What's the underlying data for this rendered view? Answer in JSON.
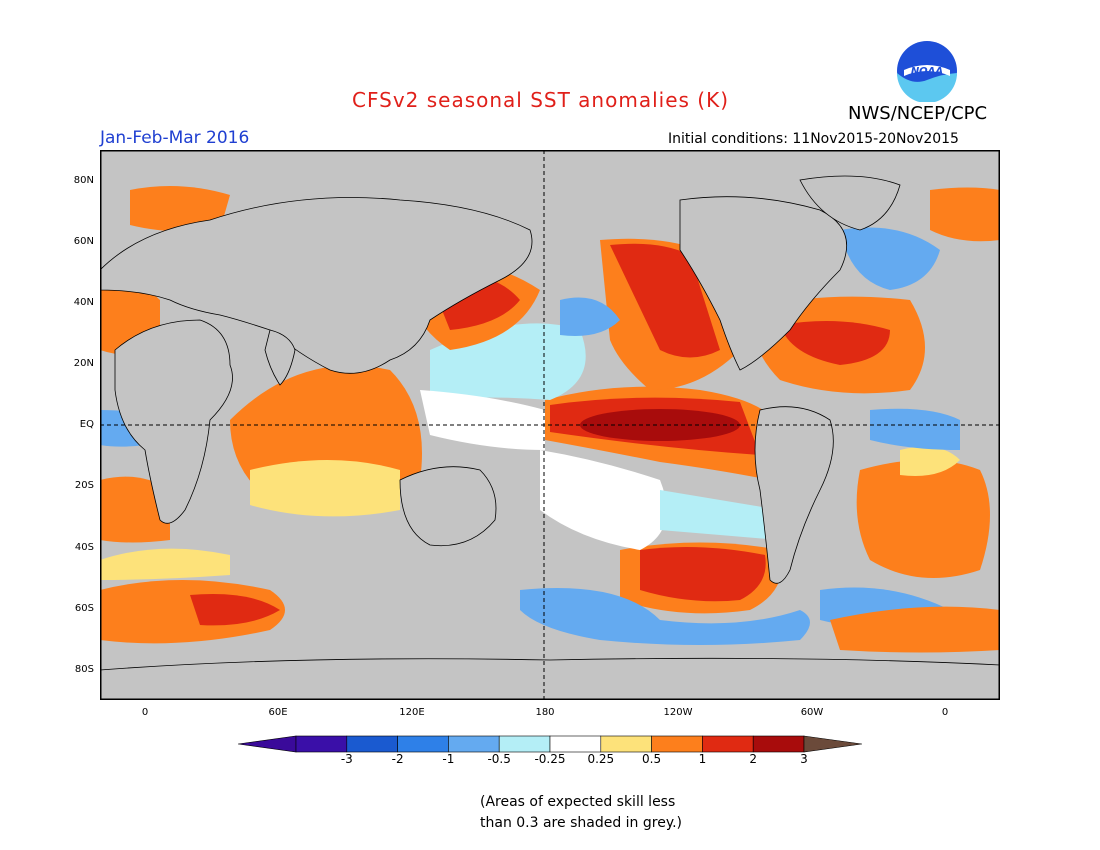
{
  "header": {
    "title": "CFSv2 seasonal SST anomalies (K)",
    "period": "Jan-Feb-Mar 2016",
    "initial_conditions": "Initial conditions: 11Nov2015-20Nov2015",
    "org": "NWS/NCEP/CPC",
    "logo_text": "NOAA"
  },
  "colors": {
    "title": "#e0201a",
    "period": "#1f3fd1",
    "land": "#c8c8c8",
    "grey": "#c0c0c0"
  },
  "map": {
    "lat_labels": [
      "80N",
      "60N",
      "40N",
      "20N",
      "EQ",
      "20S",
      "40S",
      "60S",
      "80S"
    ],
    "lon_labels": [
      "0",
      "60E",
      "120E",
      "180",
      "120W",
      "60W",
      "0"
    ]
  },
  "colorbar": {
    "labels": [
      "-3",
      "-2",
      "-1",
      "-0.5",
      "-0.25",
      "0.25",
      "0.5",
      "1",
      "2",
      "3"
    ],
    "colors": [
      "#3a0fa8",
      "#1a5ad0",
      "#2e80e8",
      "#64aaf0",
      "#b4eef6",
      "#ffffff",
      "#fde27a",
      "#fd7f1c",
      "#e02a12",
      "#a80c0c"
    ],
    "extend_low": "#3a0a9a",
    "extend_high": "#6b4a3a"
  },
  "note": {
    "line1": "(Areas of expected skill less",
    "line2": "than 0.3 are shaded in grey.)"
  }
}
